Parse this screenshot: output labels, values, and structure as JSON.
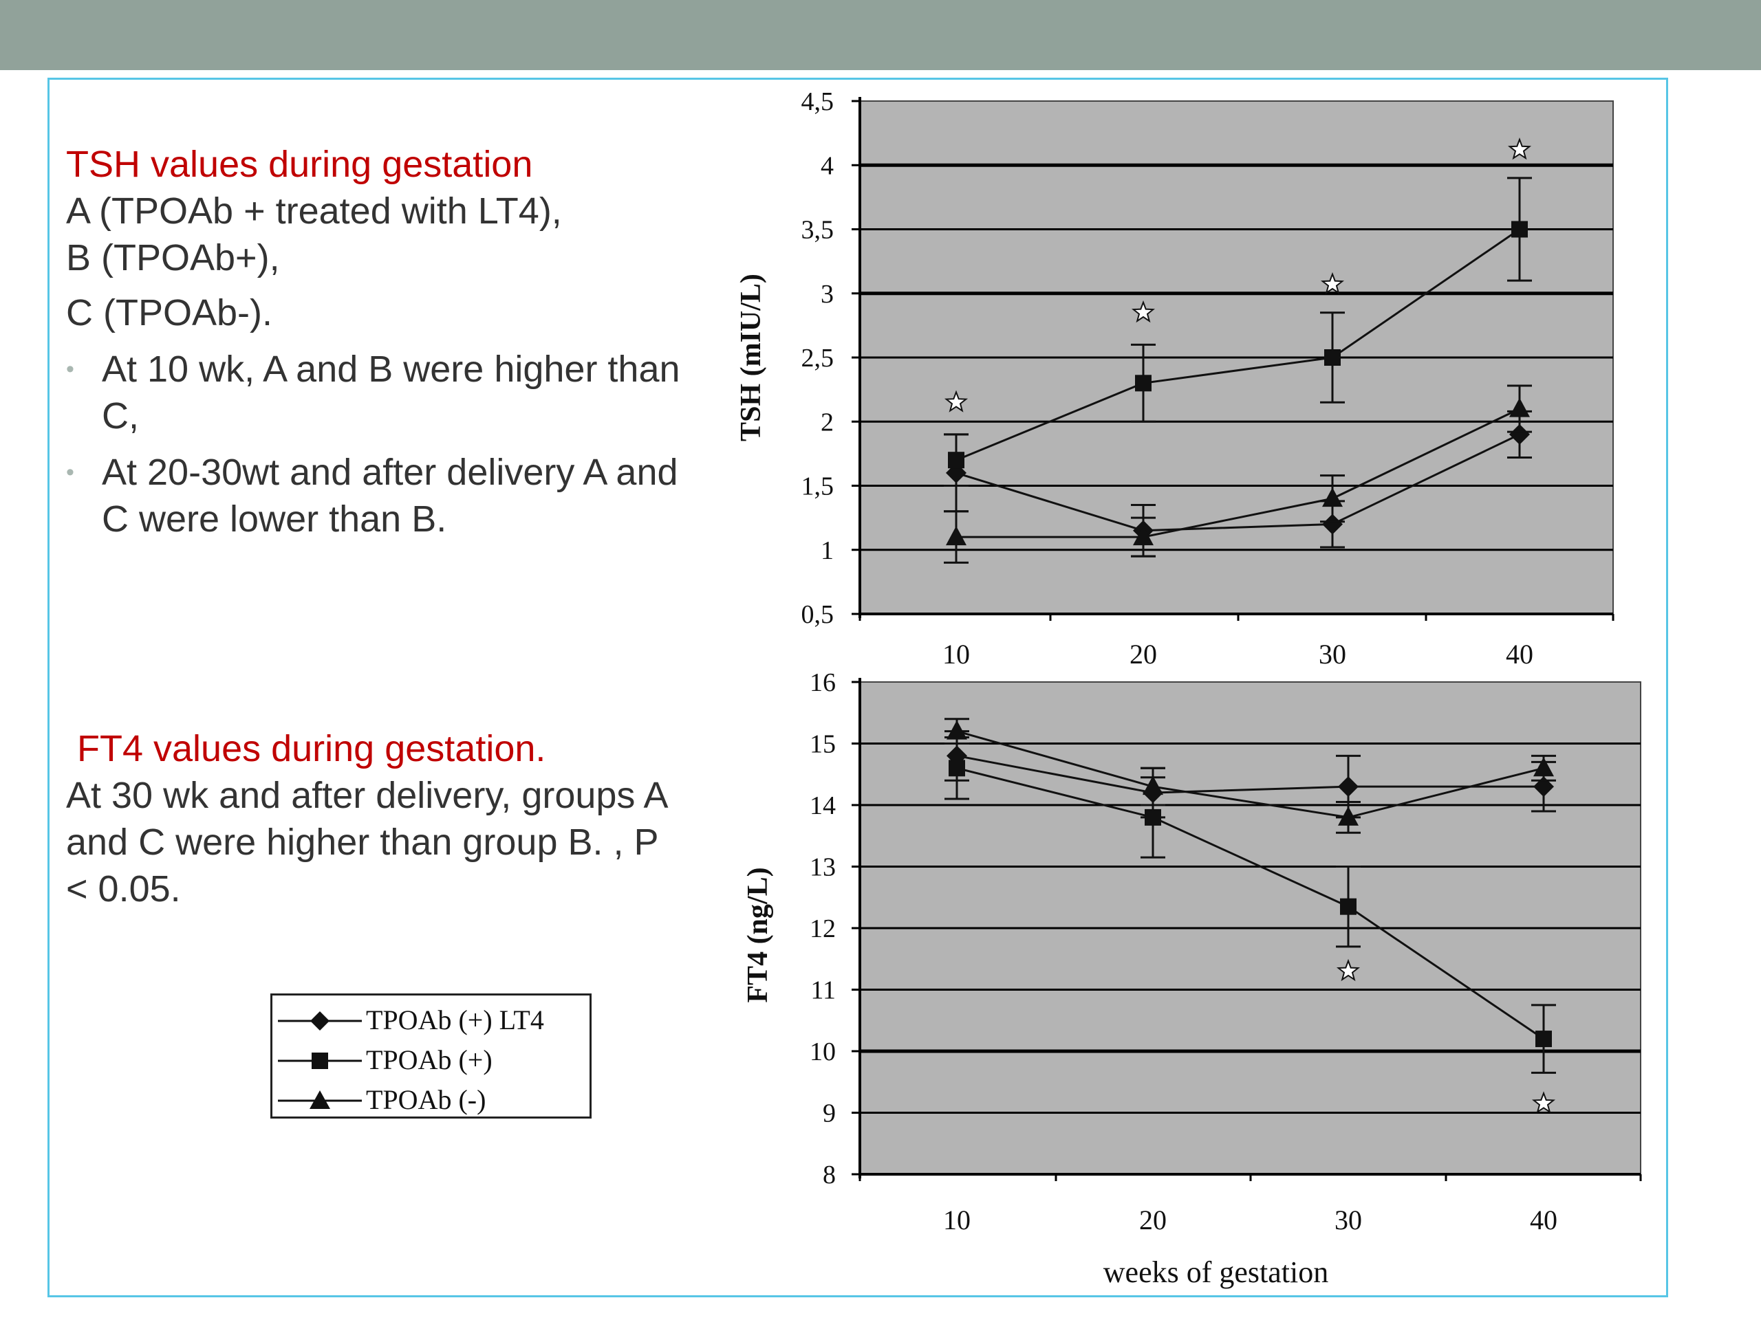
{
  "text": {
    "tsh_heading": "TSH values  during gestation",
    "group_a": "A (TPOAb + treated with LT4),",
    "group_b": "B (TPOAb+),",
    "group_c": "C (TPOAb-).",
    "bullet1": " At 10 wk, A and B were higher than C,",
    "bullet2": "At 20-30wt and after delivery  A and C were lower than B.",
    "ft4_heading": "FT4  values during gestation.",
    "ft4_text": " At 30 wk and after delivery, groups A and C were higher than group B. , P  < 0.05."
  },
  "legend": [
    "TPOAb (+) LT4",
    "TPOAb (+)",
    "TPOAb (-)"
  ],
  "colors": {
    "top_bar": "#91a29a",
    "frame": "#57c6e6",
    "plot_bg": "#b4b4b4",
    "heading": "#c00000"
  },
  "chart_data": [
    {
      "type": "line",
      "ylabel": "TSH (mIU/L)",
      "xlabel": "",
      "x": [
        10,
        20,
        30,
        40
      ],
      "ylim": [
        0.5,
        4.5
      ],
      "yticks": [
        "0,5",
        "1",
        "1,5",
        "2",
        "2,5",
        "3",
        "3,5",
        "4",
        "4,5"
      ],
      "grid": true,
      "series": [
        {
          "name": "TPOAb (+) LT4",
          "marker": "diamond",
          "values": [
            1.6,
            1.15,
            1.2,
            1.9
          ],
          "err": [
            0.3,
            0.2,
            0.18,
            0.18
          ]
        },
        {
          "name": "TPOAb (+)",
          "marker": "square",
          "values": [
            1.7,
            2.3,
            2.5,
            3.5
          ],
          "err": [
            0.2,
            0.3,
            0.35,
            0.4
          ]
        },
        {
          "name": "TPOAb (-)",
          "marker": "triangle",
          "values": [
            1.1,
            1.1,
            1.4,
            2.1
          ],
          "err": [
            0.2,
            0.15,
            0.18,
            0.18
          ]
        }
      ],
      "significance_markers": [
        {
          "x": 10,
          "y": 2.15
        },
        {
          "x": 20,
          "y": 2.85
        },
        {
          "x": 30,
          "y": 3.07
        },
        {
          "x": 40,
          "y": 4.12
        }
      ]
    },
    {
      "type": "line",
      "ylabel": "FT4 (ng/L)",
      "xlabel": "weeks of gestation",
      "x": [
        10,
        20,
        30,
        40
      ],
      "ylim": [
        8,
        16
      ],
      "yticks": [
        "8",
        "9",
        "10",
        "11",
        "12",
        "13",
        "14",
        "15",
        "16"
      ],
      "grid": true,
      "series": [
        {
          "name": "TPOAb (+) LT4",
          "marker": "diamond",
          "values": [
            14.8,
            14.2,
            14.3,
            14.3
          ],
          "err": [
            0.4,
            0.4,
            0.5,
            0.4
          ]
        },
        {
          "name": "TPOAb (+)",
          "marker": "square",
          "values": [
            14.6,
            13.8,
            12.35,
            10.2
          ],
          "err": [
            0.5,
            0.65,
            0.65,
            0.55
          ]
        },
        {
          "name": "TPOAb (-)",
          "marker": "triangle",
          "values": [
            15.2,
            14.3,
            13.8,
            14.6
          ],
          "err": [
            0.2,
            0.3,
            0.25,
            0.2
          ]
        }
      ],
      "significance_markers": [
        {
          "x": 30,
          "y": 11.3
        },
        {
          "x": 40,
          "y": 9.15
        }
      ]
    }
  ]
}
